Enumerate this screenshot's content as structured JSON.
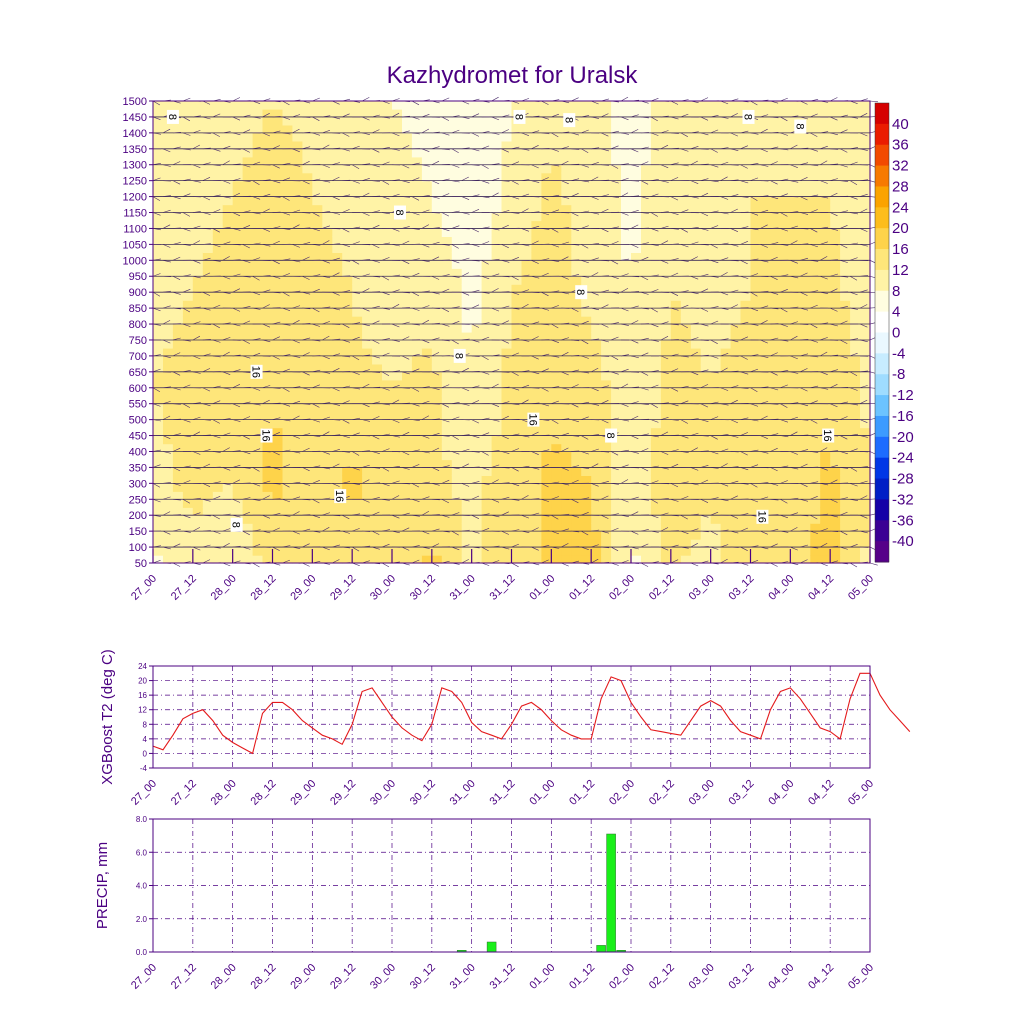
{
  "title": "Kazhydromet for Uralsk",
  "colors": {
    "text": "#4b0082",
    "frame": "#4b0082",
    "t2_line": "#e41a1c",
    "precip_bar": "#19ef19",
    "grid": "#4b0082"
  },
  "time_labels": [
    "27_00",
    "27_12",
    "28_00",
    "28_12",
    "29_00",
    "29_12",
    "30_00",
    "30_12",
    "31_00",
    "31_12",
    "01_00",
    "01_12",
    "02_00",
    "02_12",
    "03_00",
    "03_12",
    "04_00",
    "04_12",
    "05_00"
  ],
  "chart_data": [
    {
      "type": "heatmap",
      "subtype": "time-height cross section with filled temperature contours and wind barbs",
      "title": "Kazhydromet for Uralsk",
      "x_tick_labels": [
        "27_00",
        "27_12",
        "28_00",
        "28_12",
        "29_00",
        "29_12",
        "30_00",
        "30_12",
        "31_00",
        "31_12",
        "01_00",
        "01_12",
        "02_00",
        "02_12",
        "03_00",
        "03_12",
        "04_00",
        "04_12",
        "05_00"
      ],
      "y_tick_labels": [
        "50",
        "100",
        "150",
        "200",
        "250",
        "300",
        "350",
        "400",
        "450",
        "500",
        "550",
        "600",
        "650",
        "700",
        "750",
        "800",
        "850",
        "900",
        "950",
        "1000",
        "1050",
        "1100",
        "1150",
        "1200",
        "1250",
        "1300",
        "1350",
        "1400",
        "1450",
        "1500"
      ],
      "ylim": [
        50,
        1500
      ],
      "colorbar": {
        "labels": [
          "40",
          "36",
          "32",
          "28",
          "24",
          "20",
          "16",
          "12",
          "8",
          "4",
          "0",
          "-4",
          "-8",
          "-12",
          "-16",
          "-20",
          "-24",
          "-28",
          "-32",
          "-36",
          "-40"
        ],
        "colors": [
          "#d50000",
          "#ea1c00",
          "#f24a00",
          "#f77a00",
          "#fba300",
          "#fdbd1b",
          "#fed34a",
          "#fee67a",
          "#fff3a6",
          "#fffde0",
          "#ffffff",
          "#eaf8ff",
          "#c7ecff",
          "#9fdcff",
          "#6cc3ff",
          "#3d9bff",
          "#1d6cff",
          "#0037e6",
          "#001fc6",
          "#1500a7",
          "#3b0094",
          "#560089"
        ]
      },
      "contour_labels": [
        {
          "text": "8",
          "x": 0.5,
          "y": 1450
        },
        {
          "text": "16",
          "x": 2.6,
          "y": 650
        },
        {
          "text": "16",
          "x": 2.85,
          "y": 450
        },
        {
          "text": "8",
          "x": 2.1,
          "y": 170
        },
        {
          "text": "16",
          "x": 4.7,
          "y": 260
        },
        {
          "text": "8",
          "x": 6.2,
          "y": 1150
        },
        {
          "text": "8",
          "x": 7.7,
          "y": 700
        },
        {
          "text": "8",
          "x": 9.2,
          "y": 1450
        },
        {
          "text": "8",
          "x": 10.45,
          "y": 1440
        },
        {
          "text": "16",
          "x": 9.55,
          "y": 500
        },
        {
          "text": "8",
          "x": 10.75,
          "y": 900
        },
        {
          "text": "8",
          "x": 11.5,
          "y": 450
        },
        {
          "text": "8",
          "x": 14.95,
          "y": 1450
        },
        {
          "text": "8",
          "x": 16.25,
          "y": 1420
        },
        {
          "text": "16",
          "x": 15.3,
          "y": 195
        },
        {
          "text": "16",
          "x": 16.95,
          "y": 450
        }
      ],
      "temperature_field": {
        "note": "approximate 2 m to 1500 m temperature (deg C) per 12-hour time step, estimated from shading",
        "heights": [
          50,
          300,
          600,
          900,
          1200,
          1500
        ],
        "times_index": [
          0,
          1,
          2,
          3,
          4,
          5,
          6,
          7,
          8,
          9,
          10,
          11,
          12,
          13,
          14,
          15,
          16,
          17,
          18
        ],
        "values": [
          [
            7,
            11,
            8,
            14,
            13,
            14,
            13,
            17,
            11,
            14,
            17,
            18,
            7,
            13,
            10,
            16,
            13,
            18,
            11
          ],
          [
            11,
            13,
            12,
            17,
            13,
            17,
            13,
            13,
            11,
            14,
            17,
            16,
            9,
            15,
            13,
            16,
            14,
            17,
            12
          ],
          [
            12,
            13,
            14,
            16,
            13,
            13,
            12,
            13,
            8,
            13,
            15,
            14,
            9,
            13,
            12,
            13,
            13,
            15,
            11
          ],
          [
            11,
            12,
            13,
            15,
            13,
            12,
            10,
            11,
            7,
            12,
            14,
            11,
            8,
            12,
            11,
            12,
            12,
            13,
            10
          ],
          [
            10,
            11,
            12,
            14,
            12,
            11,
            9,
            8,
            5,
            9,
            13,
            10,
            7,
            10,
            10,
            12,
            12,
            12,
            9
          ],
          [
            9,
            9,
            10,
            12,
            11,
            10,
            8,
            7,
            5,
            8,
            11,
            9,
            7,
            9,
            9,
            11,
            10,
            11,
            8
          ]
        ]
      }
    },
    {
      "type": "line",
      "ylabel": "XGBoost T2 (deg C)",
      "x_tick_labels": [
        "27_00",
        "27_12",
        "28_00",
        "28_12",
        "29_00",
        "29_12",
        "30_00",
        "30_12",
        "31_00",
        "31_12",
        "01_00",
        "01_12",
        "02_00",
        "02_12",
        "03_00",
        "03_12",
        "04_00",
        "04_12",
        "05_00"
      ],
      "y_tick_labels": [
        "-4",
        "0",
        "4",
        "8",
        "12",
        "16",
        "20",
        "24"
      ],
      "ylim": [
        -4,
        24
      ],
      "grid": true,
      "x_step_hours": 3,
      "series": [
        {
          "values": [
            2,
            1,
            5,
            9.5,
            11,
            12,
            9,
            5,
            3,
            1.5,
            0,
            11,
            14,
            14,
            12,
            9,
            7,
            5,
            4,
            2.5,
            8,
            17,
            18,
            14,
            10,
            7,
            5,
            3.5,
            8,
            18,
            17,
            14,
            8.5,
            6,
            5,
            4,
            8,
            13,
            14,
            12,
            9,
            6.5,
            5,
            4,
            4,
            15,
            21,
            20,
            14,
            10,
            6.5,
            6,
            5.5,
            5,
            9,
            13,
            14.5,
            13,
            9,
            6,
            5,
            4,
            12,
            17,
            18,
            15,
            11,
            7,
            6,
            4,
            15,
            22,
            22,
            16,
            12,
            9,
            6
          ]
        }
      ]
    },
    {
      "type": "bar",
      "ylabel": "PRECIP, mm",
      "x_tick_labels": [
        "27_00",
        "27_12",
        "28_00",
        "28_12",
        "29_00",
        "29_12",
        "30_00",
        "30_12",
        "31_00",
        "31_12",
        "01_00",
        "01_12",
        "02_00",
        "02_12",
        "03_00",
        "03_12",
        "04_00",
        "04_12",
        "05_00"
      ],
      "y_tick_labels": [
        "0.0",
        "2.0",
        "4.0",
        "6.0",
        "8.0"
      ],
      "ylim": [
        0,
        8
      ],
      "grid": true,
      "x_step_hours": 3,
      "bars": [
        {
          "index": 31,
          "value": 0.1
        },
        {
          "index": 34,
          "value": 0.6
        },
        {
          "index": 45,
          "value": 0.4
        },
        {
          "index": 46,
          "value": 7.1
        },
        {
          "index": 47,
          "value": 0.1
        }
      ]
    }
  ]
}
